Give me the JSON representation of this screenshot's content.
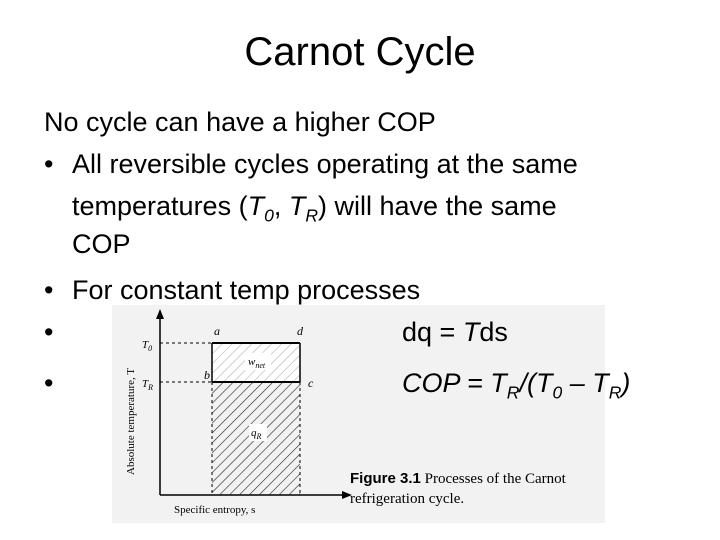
{
  "slide": {
    "title": "Carnot Cycle",
    "intro": "No cycle can have a higher COP",
    "bullet1_line1": "All reversible cycles operating at the same",
    "bullet1_line2_a": "temperatures (",
    "bullet1_line2_t0": "T",
    "bullet1_line2_t0_sub": "0",
    "bullet1_line2_sep": ", ",
    "bullet1_line2_tr": "T",
    "bullet1_line2_tr_sub": "R",
    "bullet1_line2_b": ") will have the same",
    "bullet1_line3": "COP",
    "bullet2": "For constant temp processes",
    "bullet_char": "•",
    "eq1_d": "dq = ",
    "eq1_T": "T",
    "eq1_ds": "ds",
    "eq2_cop": "COP = T",
    "eq2_sub_r": "R",
    "eq2_mid": "/(T",
    "eq2_sub_0": "0",
    "eq2_dash": " – T",
    "eq2_sub_r2": "R",
    "eq2_end": ")"
  },
  "figure": {
    "ylabel": "Absolute temperature, T",
    "xlabel": "Specific entropy, s",
    "t0_label": "T₀",
    "tr_label": "T_R",
    "t0_main": "T",
    "t0_sub": "0",
    "tr_main": "T",
    "tr_sub": "R",
    "point_a": "a",
    "point_b": "b",
    "point_c": "c",
    "point_d": "d",
    "wnet_main": "w",
    "wnet_sub": "net",
    "qr_main": "q",
    "qr_sub": "R",
    "caption_bold": "Figure 3.1",
    "caption_rest": "Processes of the Carnot refrigeration cycle."
  }
}
